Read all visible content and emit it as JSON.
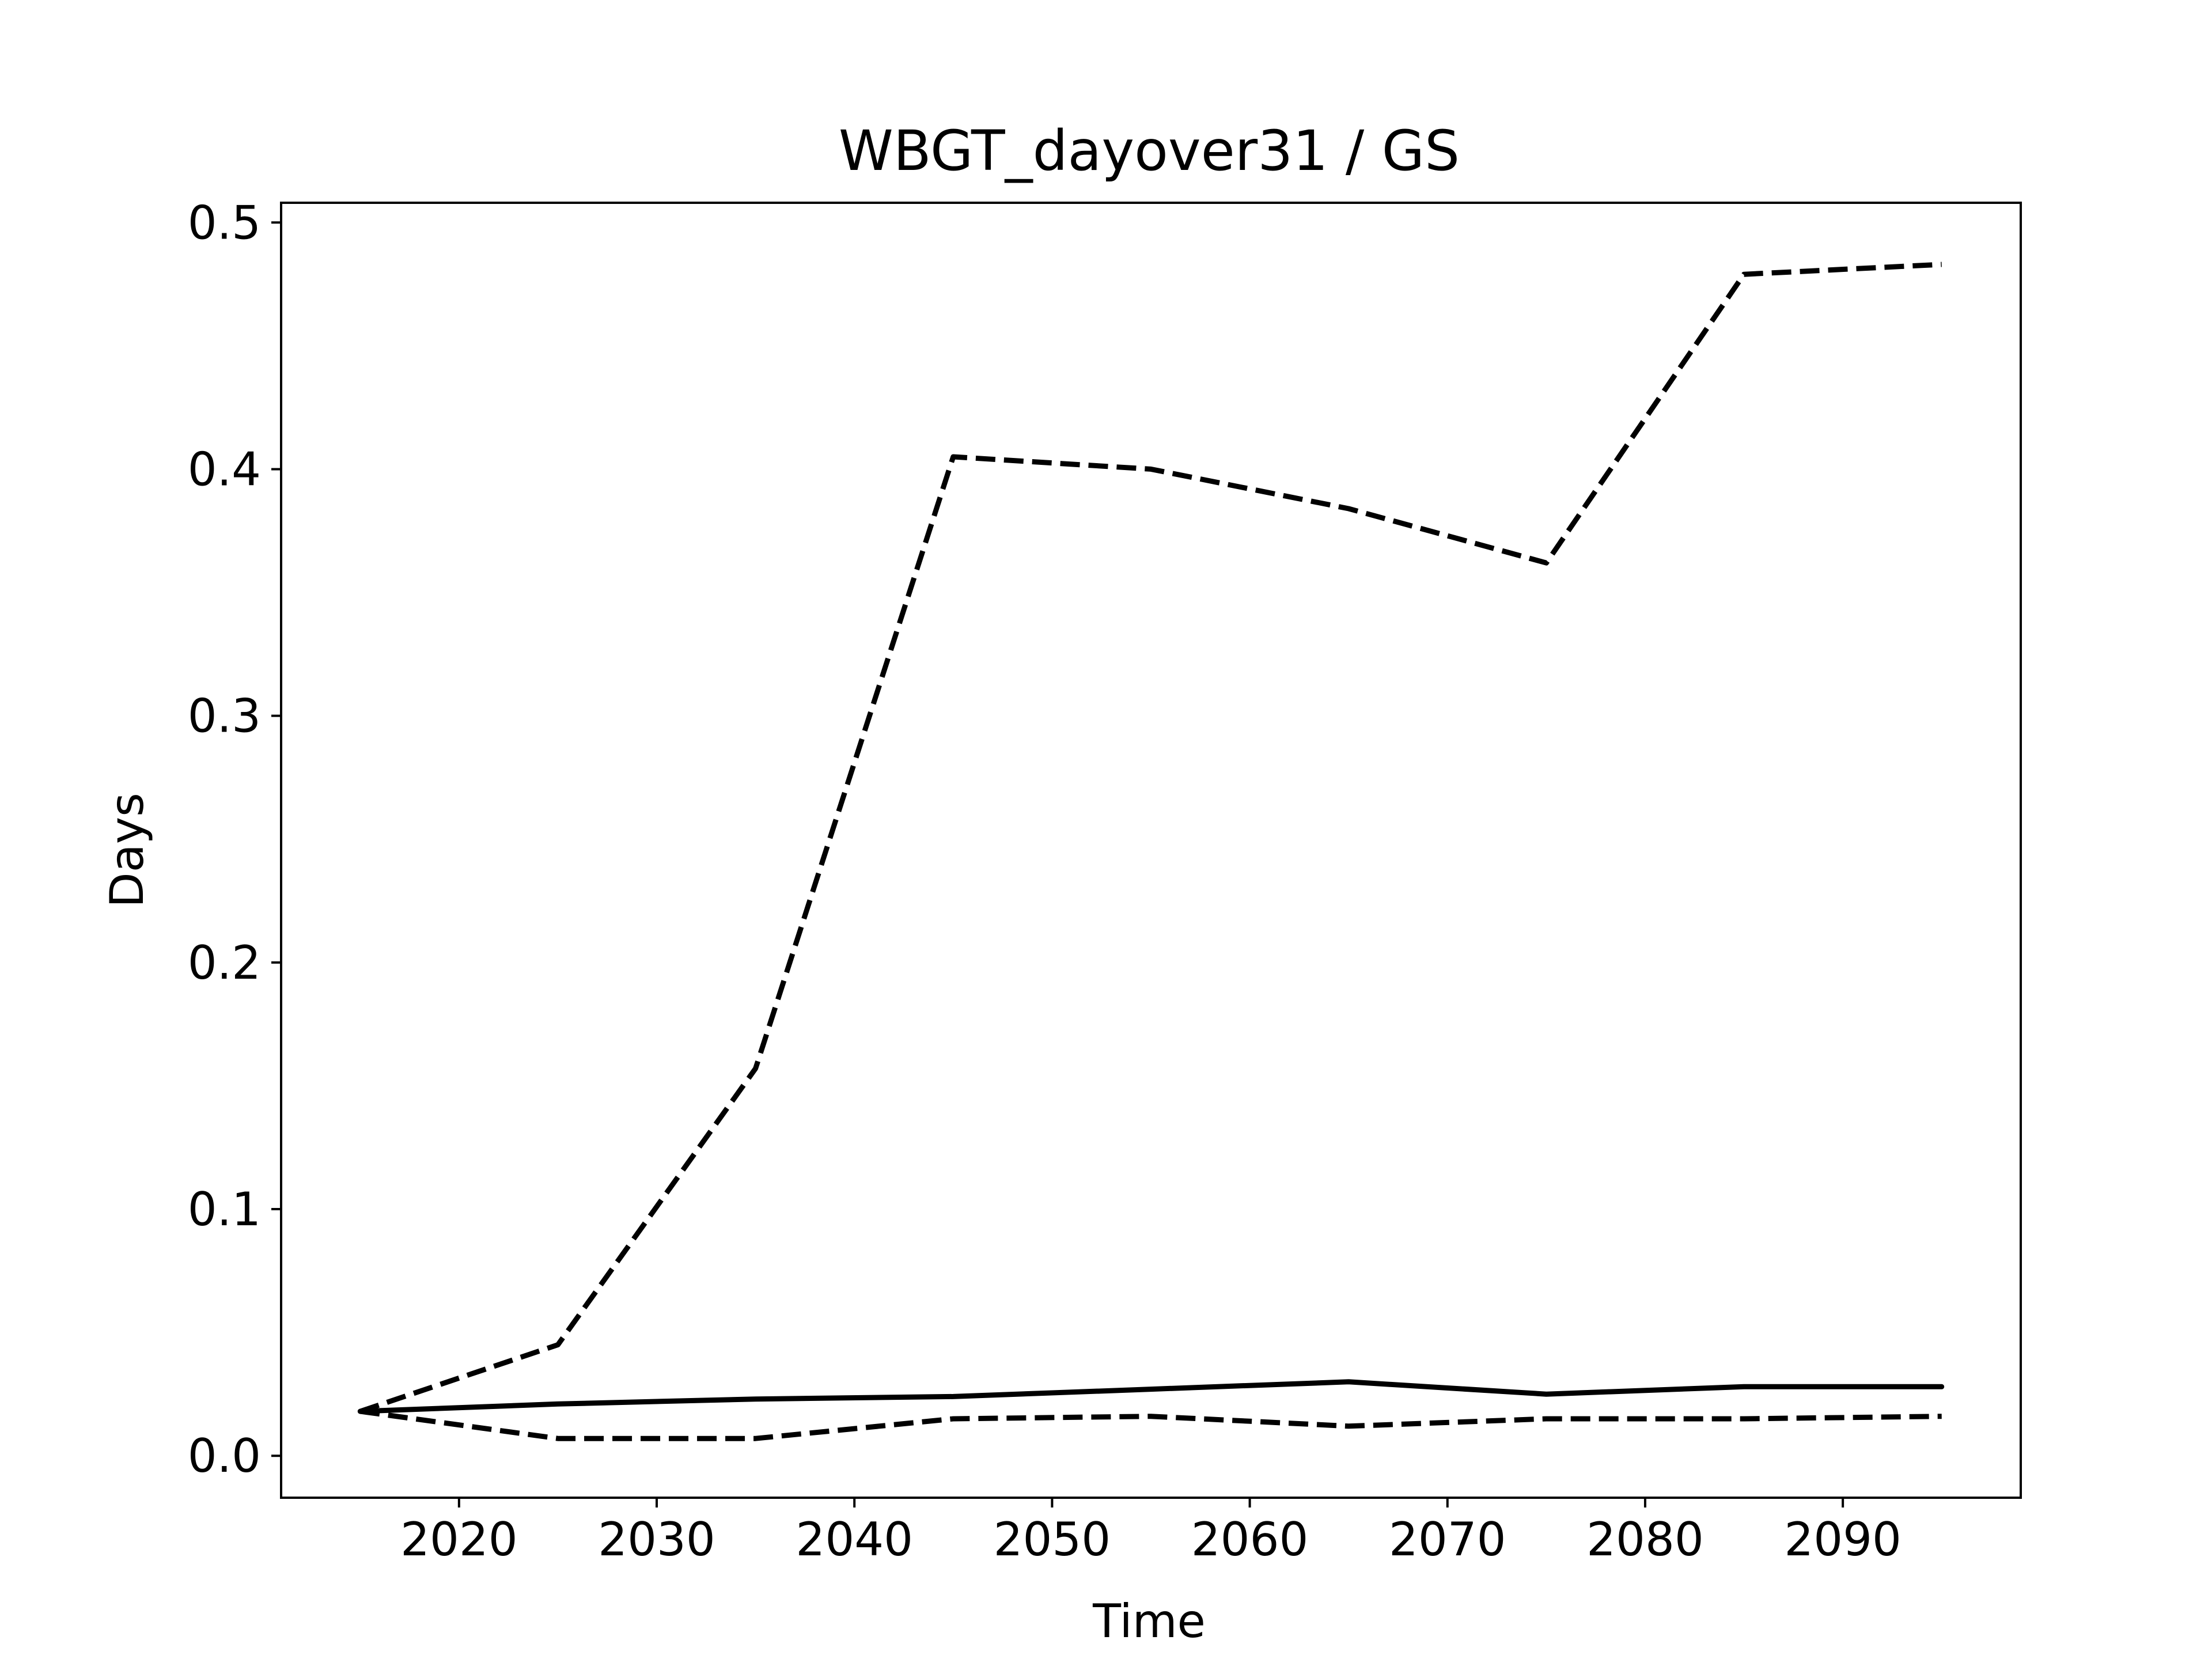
{
  "chart_data": {
    "type": "line",
    "title": "WBGT_dayover31 / GS",
    "xlabel": "Time",
    "ylabel": "Days",
    "xlim": [
      2011,
      2099
    ],
    "ylim": [
      -0.017,
      0.508
    ],
    "xticks": [
      2020,
      2030,
      2040,
      2050,
      2060,
      2070,
      2080,
      2090
    ],
    "xtick_labels": [
      "2020",
      "2030",
      "2040",
      "2050",
      "2060",
      "2070",
      "2080",
      "2090"
    ],
    "yticks": [
      0.0,
      0.1,
      0.2,
      0.3,
      0.4,
      0.5
    ],
    "ytick_labels": [
      "0.0",
      "0.1",
      "0.2",
      "0.3",
      "0.4",
      "0.5"
    ],
    "grid": false,
    "x": [
      2015,
      2025,
      2035,
      2045,
      2055,
      2065,
      2075,
      2085,
      2095
    ],
    "series": [
      {
        "style": "solid",
        "color": "#000000",
        "values": [
          0.018,
          0.021,
          0.023,
          0.024,
          0.027,
          0.03,
          0.025,
          0.028,
          0.028
        ]
      },
      {
        "style": "dashed",
        "color": "#000000",
        "values": [
          0.018,
          0.045,
          0.157,
          0.405,
          0.4,
          0.384,
          0.362,
          0.479,
          0.483
        ]
      },
      {
        "style": "dashed",
        "color": "#000000",
        "values": [
          0.018,
          0.007,
          0.007,
          0.015,
          0.016,
          0.012,
          0.015,
          0.015,
          0.016
        ]
      }
    ]
  }
}
